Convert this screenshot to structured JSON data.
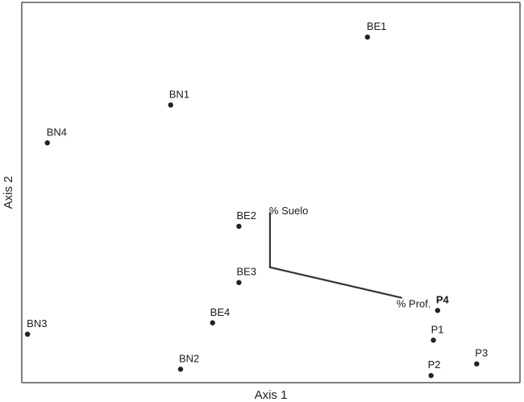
{
  "chart_data": {
    "type": "scatter",
    "xlabel": "Axis 1",
    "ylabel": "Axis 2",
    "xlim": [
      0,
      100
    ],
    "ylim": [
      0,
      100
    ],
    "grid": false,
    "points": [
      {
        "label": "BE1",
        "x": 72.4,
        "y": 96.8,
        "bold": false
      },
      {
        "label": "BN1",
        "x": 30.6,
        "y": 77.6,
        "bold": false
      },
      {
        "label": "BN4",
        "x": 4.4,
        "y": 66.9,
        "bold": false
      },
      {
        "label": "BE2",
        "x": 45.1,
        "y": 43.3,
        "bold": false
      },
      {
        "label": "BE3",
        "x": 45.1,
        "y": 27.4,
        "bold": false
      },
      {
        "label": "BE4",
        "x": 39.5,
        "y": 16.0,
        "bold": false
      },
      {
        "label": "BN3",
        "x": 0.2,
        "y": 12.8,
        "bold": false
      },
      {
        "label": "BN2",
        "x": 32.7,
        "y": 2.9,
        "bold": false
      },
      {
        "label": "P4",
        "x": 87.3,
        "y": 19.5,
        "bold": true
      },
      {
        "label": "P1",
        "x": 86.4,
        "y": 11.1,
        "bold": false
      },
      {
        "label": "P2",
        "x": 85.9,
        "y": 1.1,
        "bold": false
      },
      {
        "label": "P3",
        "x": 95.6,
        "y": 4.4,
        "bold": false
      }
    ],
    "vectors": {
      "origin": {
        "x": 51.7,
        "y": 31.7
      },
      "items": [
        {
          "label": "% Suelo",
          "x": 51.7,
          "y": 47.1
        },
        {
          "label": "% Prof.",
          "x": 79.6,
          "y": 23.1
        }
      ]
    }
  }
}
